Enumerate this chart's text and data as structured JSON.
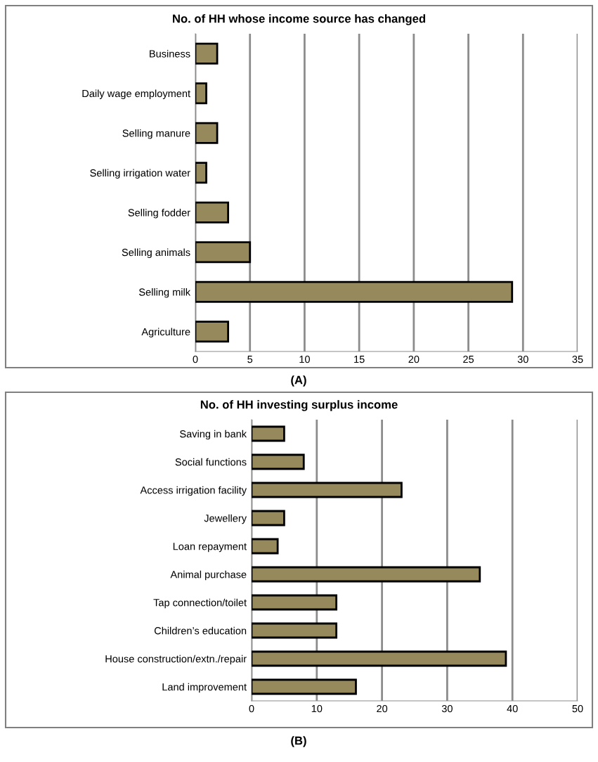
{
  "chart_data": [
    {
      "type": "bar",
      "orientation": "horizontal",
      "title": "No. of HH whose income source has changed",
      "categories": [
        "Business",
        "Daily wage employment",
        "Selling manure",
        "Selling irrigation water",
        "Selling fodder",
        "Selling animals",
        "Selling milk",
        "Agriculture"
      ],
      "values": [
        2,
        1,
        2,
        1,
        3,
        5,
        29,
        3
      ],
      "color": "#968a5c",
      "xlim": [
        0,
        35
      ],
      "xticks": [
        0,
        5,
        10,
        15,
        20,
        25,
        30,
        35
      ],
      "grid": "x",
      "legend": false,
      "annotations": [
        "(A)"
      ]
    },
    {
      "type": "bar",
      "orientation": "horizontal",
      "title": "No. of HH investing surplus income",
      "categories": [
        "Saving in bank",
        "Social functions",
        "Access irrigation facility",
        "Jewellery",
        "Loan repayment",
        "Animal purchase",
        "Tap connection/toilet",
        "Children’s education",
        "House construction/extn./repair",
        "Land improvement"
      ],
      "values": [
        5,
        8,
        23,
        5,
        4,
        35,
        13,
        13,
        39,
        16
      ],
      "color": "#968a5c",
      "xlim": [
        0,
        50
      ],
      "xticks": [
        0,
        10,
        20,
        30,
        40,
        50
      ],
      "grid": "x",
      "legend": false,
      "annotations": [
        "(B)"
      ]
    }
  ]
}
